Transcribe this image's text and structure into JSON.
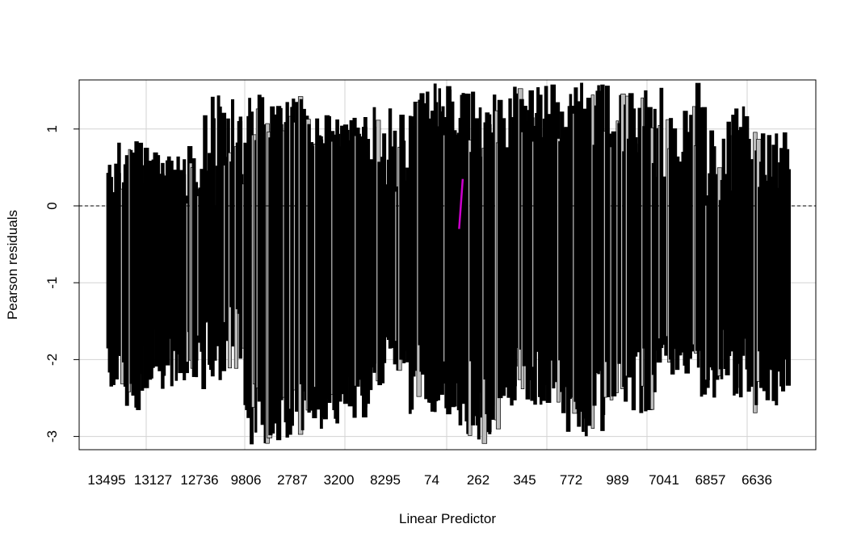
{
  "chart_data": {
    "type": "bar",
    "title": "",
    "xlabel": "Linear Predictor",
    "ylabel": "Pearson residuals",
    "ylim": [
      -3.2,
      1.65
    ],
    "y_ticks": [
      -3,
      -2,
      -1,
      0,
      1
    ],
    "x_tick_labels": [
      "13495",
      "13127",
      "12736",
      "9806",
      "2787",
      "3200",
      "8295",
      "74",
      "262",
      "345",
      "772",
      "989",
      "7041",
      "6857",
      "6636"
    ],
    "grid": true,
    "reference_line": {
      "y": 0,
      "style": "dashed",
      "color": "#000000"
    },
    "highlight_color": "#cc00cc",
    "series": [
      {
        "segments": [
          {
            "count": 30,
            "min": [
              -2.7,
              -1.8
            ],
            "max": [
              0.0,
              0.85
            ]
          },
          {
            "count": 32,
            "min": [
              -2.4,
              -1.4
            ],
            "max": [
              0.0,
              0.8
            ]
          },
          {
            "count": 26,
            "min": [
              -2.3,
              -1.2
            ],
            "max": [
              0.0,
              1.45
            ]
          },
          {
            "count": 42,
            "min": [
              -3.1,
              -2.3
            ],
            "max": [
              0.8,
              1.45
            ]
          },
          {
            "count": 38,
            "min": [
              -2.9,
              -2.2
            ],
            "max": [
              0.6,
              1.2
            ]
          },
          {
            "count": 26,
            "min": [
              -2.4,
              -1.6
            ],
            "max": [
              0.1,
              1.3
            ]
          },
          {
            "count": 32,
            "min": [
              -2.8,
              -1.8
            ],
            "max": [
              0.9,
              1.6
            ]
          },
          {
            "count": 34,
            "min": [
              -3.1,
              -2.0
            ],
            "max": [
              0.6,
              1.5
            ]
          },
          {
            "count": 32,
            "min": [
              -2.6,
              -1.8
            ],
            "max": [
              0.8,
              1.6
            ]
          },
          {
            "count": 30,
            "min": [
              -3.0,
              -2.0
            ],
            "max": [
              0.7,
              1.6
            ]
          },
          {
            "count": 30,
            "min": [
              -2.7,
              -1.8
            ],
            "max": [
              0.5,
              1.5
            ]
          },
          {
            "count": 28,
            "min": [
              -2.2,
              -1.6
            ],
            "max": [
              0.2,
              1.6
            ]
          },
          {
            "count": 30,
            "min": [
              -2.5,
              -1.6
            ],
            "max": [
              0.0,
              1.3
            ]
          },
          {
            "count": 28,
            "min": [
              -2.7,
              -1.8
            ],
            "max": [
              0.2,
              1.0
            ]
          }
        ],
        "highlight": {
          "x_index": 0.52,
          "from": -0.3,
          "to": 0.35
        }
      }
    ]
  }
}
